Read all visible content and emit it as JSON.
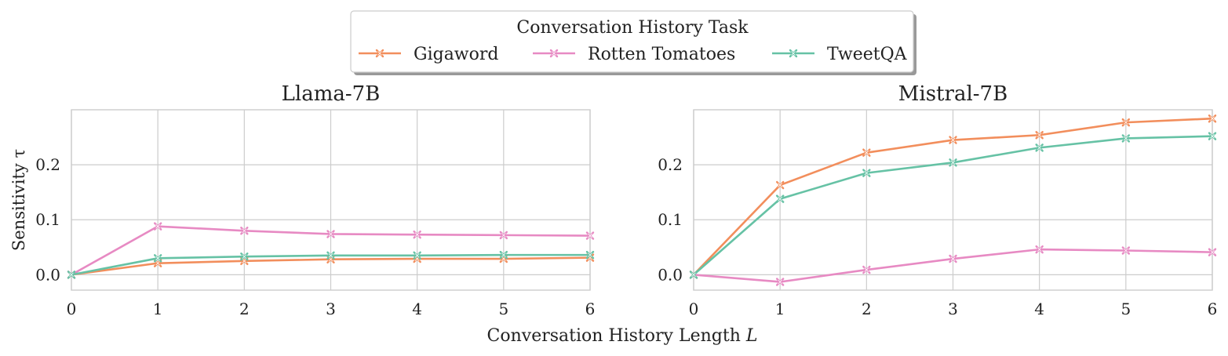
{
  "legend": {
    "title": "Conversation History Task",
    "entries": [
      {
        "label": "Gigaword",
        "color": "#f28e5c"
      },
      {
        "label": "Rotten Tomatoes",
        "color": "#e78ac3"
      },
      {
        "label": "TweetQA",
        "color": "#66c2a5"
      }
    ],
    "marker": "x"
  },
  "shared_xlabel_prefix": "Conversation History Length ",
  "shared_xlabel_var": "L",
  "chart_data": [
    {
      "type": "line",
      "title": "Llama-7B",
      "xlabel": "Conversation History Length L",
      "ylabel": "Sensitivity τ",
      "xlim": [
        0,
        6
      ],
      "ylim": [
        -0.028,
        0.3
      ],
      "xticks": [
        "0",
        "1",
        "2",
        "3",
        "4",
        "5",
        "6"
      ],
      "yticks": [
        "0.0",
        "0.1",
        "0.2"
      ],
      "grid": true,
      "x": [
        0,
        1,
        2,
        3,
        4,
        5,
        6
      ],
      "series": [
        {
          "name": "Gigaword",
          "color": "#f28e5c",
          "values": [
            0.0,
            0.021,
            0.025,
            0.028,
            0.029,
            0.029,
            0.031
          ]
        },
        {
          "name": "Rotten Tomatoes",
          "color": "#e78ac3",
          "values": [
            0.0,
            0.088,
            0.08,
            0.074,
            0.073,
            0.072,
            0.071
          ]
        },
        {
          "name": "TweetQA",
          "color": "#66c2a5",
          "values": [
            0.0,
            0.03,
            0.033,
            0.035,
            0.035,
            0.036,
            0.036
          ]
        }
      ]
    },
    {
      "type": "line",
      "title": "Mistral-7B",
      "xlabel": "Conversation History Length L",
      "ylabel": "",
      "xlim": [
        0,
        6
      ],
      "ylim": [
        -0.028,
        0.3
      ],
      "xticks": [
        "0",
        "1",
        "2",
        "3",
        "4",
        "5",
        "6"
      ],
      "yticks": [
        "0.0",
        "0.1",
        "0.2"
      ],
      "grid": true,
      "x": [
        0,
        1,
        2,
        3,
        4,
        5,
        6
      ],
      "series": [
        {
          "name": "Gigaword",
          "color": "#f28e5c",
          "values": [
            0.0,
            0.163,
            0.222,
            0.245,
            0.254,
            0.277,
            0.284
          ]
        },
        {
          "name": "Rotten Tomatoes",
          "color": "#e78ac3",
          "values": [
            0.0,
            -0.013,
            0.009,
            0.029,
            0.046,
            0.044,
            0.041
          ]
        },
        {
          "name": "TweetQA",
          "color": "#66c2a5",
          "values": [
            0.0,
            0.138,
            0.185,
            0.204,
            0.231,
            0.248,
            0.252
          ]
        }
      ]
    }
  ]
}
